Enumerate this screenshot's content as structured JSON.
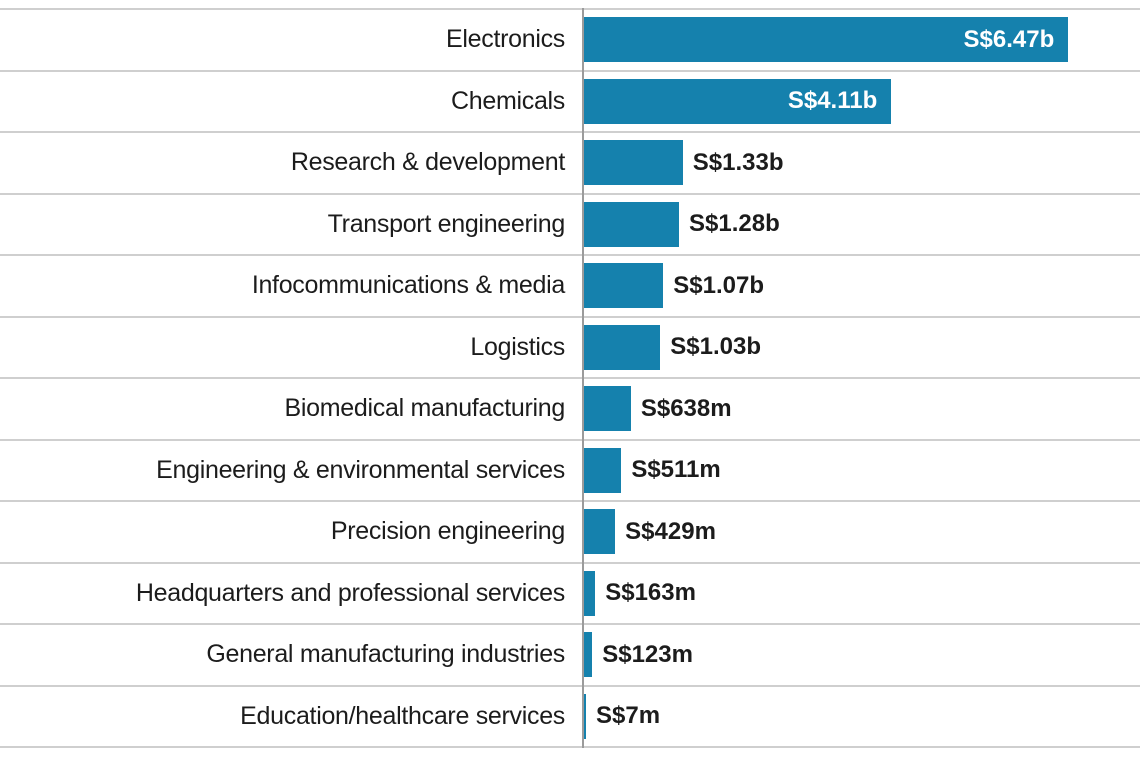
{
  "chart_data": {
    "type": "bar",
    "orientation": "horizontal",
    "title": "",
    "xlabel": "",
    "ylabel": "",
    "unit": "S$",
    "bar_color": "#1581ad",
    "gridline_color": "#cfcfcf",
    "axis_color": "#9b9b9b",
    "categories": [
      "Electronics",
      "Chemicals",
      "Research & development",
      "Transport engineering",
      "Infocommunications & media",
      "Logistics",
      "Biomedical manufacturing",
      "Engineering & environmental services",
      "Precision engineering",
      "Headquarters and professional services",
      "General manufacturing industries",
      "Education/healthcare services"
    ],
    "values_billions": [
      6.47,
      4.11,
      1.33,
      1.28,
      1.07,
      1.03,
      0.638,
      0.511,
      0.429,
      0.163,
      0.123,
      0.007
    ],
    "rows": [
      {
        "label": "Electronics",
        "value_billions": 6.47,
        "value_label": "S$6.47b",
        "label_inside": true
      },
      {
        "label": "Chemicals",
        "value_billions": 4.11,
        "value_label": "S$4.11b",
        "label_inside": true
      },
      {
        "label": "Research & development",
        "value_billions": 1.33,
        "value_label": "S$1.33b",
        "label_inside": false
      },
      {
        "label": "Transport engineering",
        "value_billions": 1.28,
        "value_label": "S$1.28b",
        "label_inside": false
      },
      {
        "label": "Infocommunications & media",
        "value_billions": 1.07,
        "value_label": "S$1.07b",
        "label_inside": false
      },
      {
        "label": "Logistics",
        "value_billions": 1.03,
        "value_label": "S$1.03b",
        "label_inside": false
      },
      {
        "label": "Biomedical manufacturing",
        "value_billions": 0.638,
        "value_label": "S$638m",
        "label_inside": false
      },
      {
        "label": "Engineering & environmental services",
        "value_billions": 0.511,
        "value_label": "S$511m",
        "label_inside": false
      },
      {
        "label": "Precision engineering",
        "value_billions": 0.429,
        "value_label": "S$429m",
        "label_inside": false
      },
      {
        "label": "Headquarters and professional services",
        "value_billions": 0.163,
        "value_label": "S$163m",
        "label_inside": false
      },
      {
        "label": "General manufacturing industries",
        "value_billions": 0.123,
        "value_label": "S$123m",
        "label_inside": false
      },
      {
        "label": "Education/healthcare services",
        "value_billions": 0.007,
        "value_label": "S$7m",
        "label_inside": false
      }
    ]
  }
}
